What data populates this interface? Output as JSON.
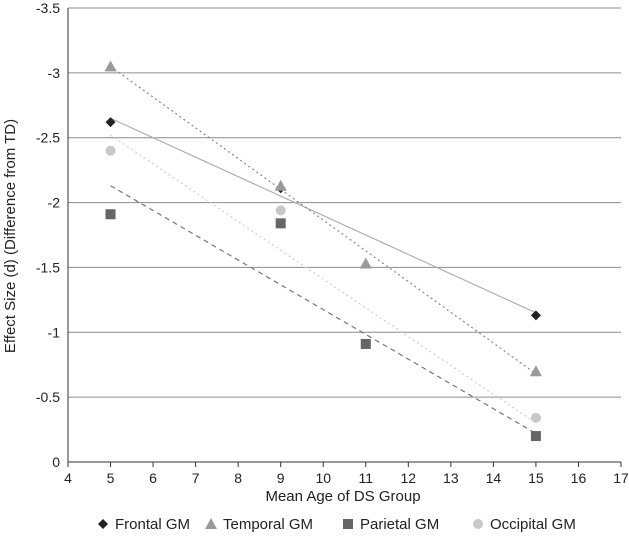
{
  "chart_data": {
    "type": "scatter",
    "xlabel": "Mean Age of DS Group",
    "ylabel": "Effect Size (d) (Difference from TD)",
    "xlim": [
      4,
      17
    ],
    "ylim": [
      0,
      -3.5
    ],
    "y_reversed": true,
    "grid": "horizontal",
    "legend_position": "bottom",
    "x_ticks": [
      "4",
      "5",
      "6",
      "7",
      "8",
      "9",
      "10",
      "11",
      "12",
      "13",
      "14",
      "15",
      "16",
      "17"
    ],
    "y_ticks": [
      "0",
      "-0.5",
      "-1",
      "-1.5",
      "-2",
      "-2.5",
      "-3",
      "-3.5"
    ],
    "series": [
      {
        "name": "Frontal GM",
        "marker": "diamond",
        "color": "#222222",
        "points": [
          [
            5,
            -2.62
          ],
          [
            9,
            -2.11
          ],
          [
            15,
            -1.13
          ]
        ],
        "trendline": {
          "x": [
            5,
            15
          ],
          "y": [
            -2.65,
            -1.15
          ],
          "style": "solid",
          "color": "#b0b0b0"
        }
      },
      {
        "name": "Temporal GM",
        "marker": "triangle",
        "color": "#9a9a9a",
        "points": [
          [
            5,
            -3.05
          ],
          [
            9,
            -2.13
          ],
          [
            11,
            -1.53
          ],
          [
            15,
            -0.7
          ]
        ],
        "trendline": {
          "x": [
            5,
            15
          ],
          "y": [
            -3.05,
            -0.68
          ],
          "style": "dotted",
          "color": "#888888"
        }
      },
      {
        "name": "Parietal GM",
        "marker": "square",
        "color": "#666666",
        "points": [
          [
            5,
            -1.91
          ],
          [
            9,
            -1.84
          ],
          [
            11,
            -0.91
          ],
          [
            15,
            -0.2
          ]
        ],
        "trendline": {
          "x": [
            5,
            15
          ],
          "y": [
            -2.13,
            -0.22
          ],
          "style": "dashed",
          "color": "#777777"
        }
      },
      {
        "name": "Occipital GM",
        "marker": "circle",
        "color": "#c8c8c8",
        "points": [
          [
            5,
            -2.4
          ],
          [
            9,
            -1.94
          ],
          [
            15,
            -0.34
          ]
        ],
        "trendline": {
          "x": [
            5,
            15
          ],
          "y": [
            -2.52,
            -0.3
          ],
          "style": "dotted",
          "color": "#cfcfcf"
        }
      }
    ]
  }
}
